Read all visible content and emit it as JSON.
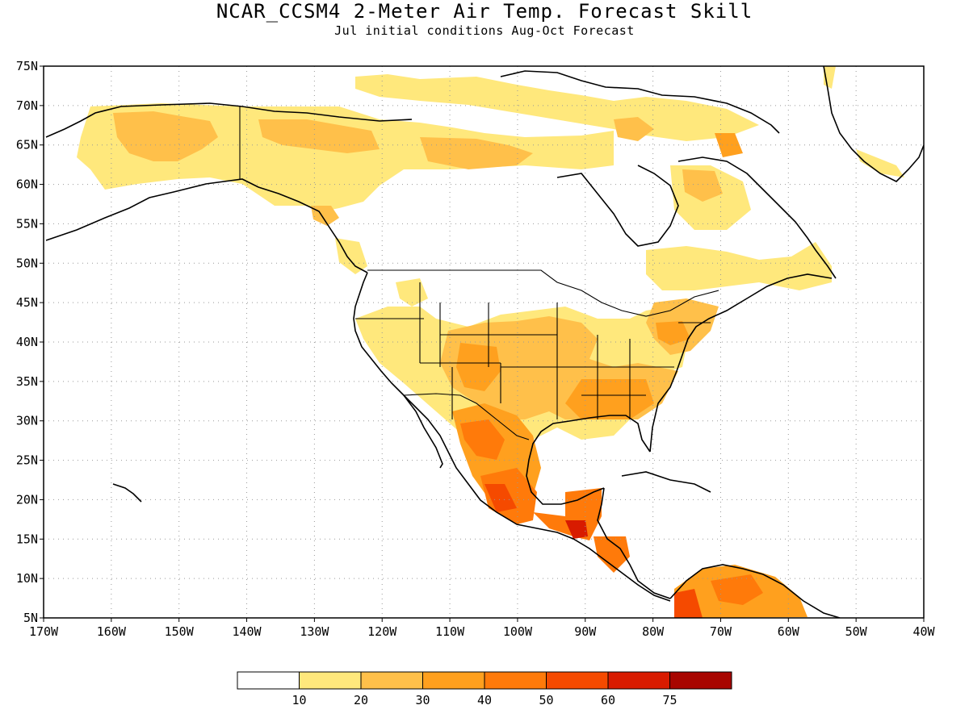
{
  "title": "NCAR_CCSM4 2-Meter Air Temp. Forecast Skill",
  "subtitle": "Jul initial conditions  Aug-Oct Forecast",
  "map": {
    "lon_range": [
      -170,
      -40
    ],
    "lat_range": [
      5,
      75
    ],
    "grid": "dotted",
    "lat_ticks": [
      "5N",
      "10N",
      "15N",
      "20N",
      "25N",
      "30N",
      "35N",
      "40N",
      "45N",
      "50N",
      "55N",
      "60N",
      "65N",
      "70N",
      "75N"
    ],
    "lon_ticks": [
      "170W",
      "160W",
      "150W",
      "140W",
      "130W",
      "120W",
      "110W",
      "100W",
      "90W",
      "80W",
      "70W",
      "60W",
      "50W",
      "40W"
    ]
  },
  "colorbar": {
    "labels": [
      "10",
      "20",
      "30",
      "40",
      "50",
      "60",
      "75"
    ],
    "colors": [
      "#ffffff",
      "#ffe87c",
      "#ffc04a",
      "#ffa01e",
      "#ff7a0a",
      "#f54a00",
      "#d81b00",
      "#a80500"
    ]
  },
  "palette": {
    "c10": "#ffe87c",
    "c20": "#ffc04a",
    "c30": "#ffa01e",
    "c40": "#ff7a0a",
    "c50": "#f54a00",
    "c60": "#d81b00"
  }
}
